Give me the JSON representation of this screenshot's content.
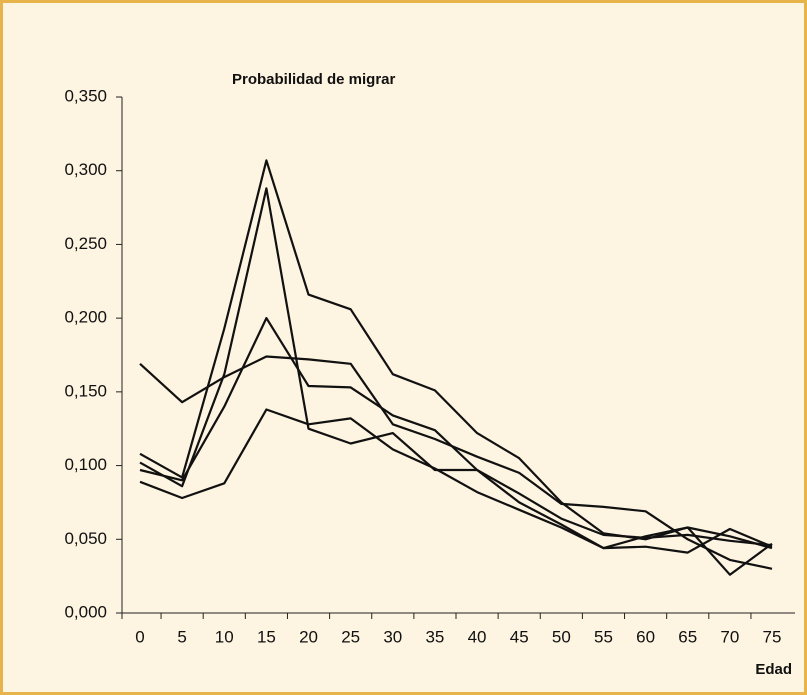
{
  "chart_data": {
    "type": "line",
    "title": "Probabilidad de migrar",
    "x_label": "Edad",
    "categories": [
      "0",
      "5",
      "10",
      "15",
      "20",
      "25",
      "30",
      "35",
      "40",
      "45",
      "50",
      "55",
      "60",
      "65",
      "70",
      "75"
    ],
    "series": [
      {
        "color": "#111111",
        "values": [
          0.108,
          0.092,
          0.193,
          0.307,
          0.216,
          0.206,
          0.162,
          0.151,
          0.122,
          0.105,
          0.075,
          0.054,
          0.05,
          0.058,
          0.052,
          0.044
        ]
      },
      {
        "color": "#111111",
        "values": [
          0.102,
          0.086,
          0.162,
          0.288,
          0.125,
          0.115,
          0.122,
          0.097,
          0.097,
          0.075,
          0.06,
          0.044,
          0.045,
          0.041,
          0.057,
          0.045
        ]
      },
      {
        "color": "#111111",
        "values": [
          0.169,
          0.143,
          0.16,
          0.174,
          0.172,
          0.169,
          0.128,
          0.118,
          0.106,
          0.095,
          0.074,
          0.072,
          0.069,
          0.05,
          0.036,
          0.03
        ]
      },
      {
        "color": "#111111",
        "values": [
          0.097,
          0.09,
          0.14,
          0.2,
          0.154,
          0.153,
          0.134,
          0.124,
          0.097,
          0.081,
          0.064,
          0.053,
          0.051,
          0.053,
          0.049,
          0.046
        ]
      },
      {
        "color": "#111111",
        "values": [
          0.089,
          0.078,
          0.088,
          0.138,
          0.128,
          0.132,
          0.111,
          0.098,
          0.082,
          0.07,
          0.058,
          0.044,
          0.052,
          0.058,
          0.026,
          0.047
        ]
      }
    ],
    "ylim": [
      0,
      0.35
    ],
    "yticks": [
      {
        "value": 0,
        "label": "0,000"
      },
      {
        "value": 0.05,
        "label": "0,050"
      },
      {
        "value": 0.1,
        "label": "0,100"
      },
      {
        "value": 0.15,
        "label": "0,150"
      },
      {
        "value": 0.2,
        "label": "0,200"
      },
      {
        "value": 0.25,
        "label": "0,250"
      },
      {
        "value": 0.3,
        "label": "0,300"
      },
      {
        "value": 0.35,
        "label": "0,350"
      }
    ]
  }
}
